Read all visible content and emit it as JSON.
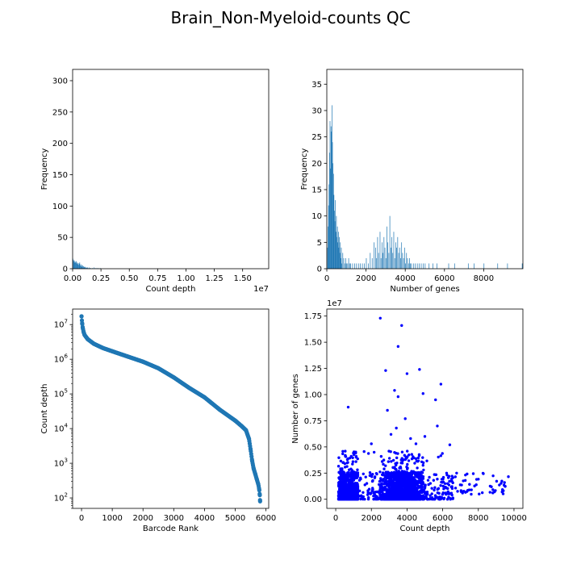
{
  "figure": {
    "title": "Brain_Non-Myeloid-counts QC",
    "colors": {
      "hist": "#1f77b4",
      "rank": "#1f77b4",
      "scatter": "#0000ff",
      "axis": "#000000"
    }
  },
  "chart_data": [
    {
      "id": "count-depth-hist",
      "type": "bar",
      "xlabel": "Count depth",
      "ylabel": "Frequency",
      "xlim": [
        0,
        17300000
      ],
      "ylim": [
        0,
        318
      ],
      "xticks": [
        0,
        2500000,
        5000000,
        7500000,
        10000000,
        12500000,
        15000000
      ],
      "xtick_labels": [
        "0.00",
        "0.25",
        "0.50",
        "0.75",
        "1.00",
        "1.25",
        "1.50"
      ],
      "yticks": [
        0,
        50,
        100,
        150,
        200,
        250,
        300
      ],
      "x_offset_label": "1e7",
      "bin_width": 43000,
      "bins": [
        [
          0,
          16
        ],
        [
          43000,
          14
        ],
        [
          86000,
          12
        ],
        [
          129000,
          13
        ],
        [
          172000,
          10
        ],
        [
          215000,
          11
        ],
        [
          258000,
          9
        ],
        [
          301000,
          12
        ],
        [
          344000,
          8
        ],
        [
          387000,
          10
        ],
        [
          430000,
          7
        ],
        [
          473000,
          9
        ],
        [
          516000,
          6
        ],
        [
          559000,
          8
        ],
        [
          602000,
          10
        ],
        [
          645000,
          5
        ],
        [
          688000,
          7
        ],
        [
          731000,
          4
        ],
        [
          774000,
          6
        ],
        [
          817000,
          3
        ],
        [
          860000,
          5
        ],
        [
          903000,
          2
        ],
        [
          946000,
          4
        ],
        [
          989000,
          3
        ],
        [
          1032000,
          2
        ],
        [
          1075000,
          3
        ],
        [
          1118000,
          2
        ],
        [
          1161000,
          1
        ],
        [
          1204000,
          2
        ],
        [
          1247000,
          1
        ],
        [
          1290000,
          2
        ],
        [
          1333000,
          1
        ],
        [
          1419000,
          2
        ],
        [
          1505000,
          1
        ],
        [
          1591000,
          1
        ],
        [
          1720000,
          1
        ],
        [
          1849000,
          2
        ],
        [
          1978000,
          1
        ],
        [
          2107000,
          1
        ],
        [
          2236000,
          1
        ],
        [
          2408000,
          1
        ]
      ]
    },
    {
      "id": "genes-hist",
      "type": "bar",
      "xlabel": "Number of genes",
      "ylabel": "Frequency",
      "xlim": [
        0,
        10000
      ],
      "ylim": [
        0,
        37.8
      ],
      "xticks": [
        0,
        2000,
        4000,
        6000,
        8000
      ],
      "yticks": [
        0,
        5,
        10,
        15,
        20,
        25,
        30,
        35
      ],
      "bin_width": 25,
      "bins": [
        [
          25,
          4
        ],
        [
          50,
          8
        ],
        [
          75,
          12
        ],
        [
          100,
          16
        ],
        [
          125,
          22
        ],
        [
          150,
          28
        ],
        [
          175,
          19
        ],
        [
          200,
          27
        ],
        [
          225,
          26
        ],
        [
          250,
          31
        ],
        [
          275,
          24
        ],
        [
          300,
          20
        ],
        [
          325,
          18
        ],
        [
          350,
          14
        ],
        [
          375,
          11
        ],
        [
          400,
          9
        ],
        [
          425,
          13
        ],
        [
          450,
          7
        ],
        [
          475,
          10
        ],
        [
          500,
          6
        ],
        [
          525,
          8
        ],
        [
          550,
          5
        ],
        [
          575,
          7
        ],
        [
          600,
          4
        ],
        [
          625,
          6
        ],
        [
          650,
          3
        ],
        [
          675,
          5
        ],
        [
          700,
          2
        ],
        [
          725,
          4
        ],
        [
          750,
          1
        ],
        [
          800,
          3
        ],
        [
          850,
          2
        ],
        [
          900,
          1
        ],
        [
          950,
          2
        ],
        [
          1000,
          1
        ],
        [
          1050,
          1
        ],
        [
          1100,
          2
        ],
        [
          1150,
          1
        ],
        [
          1200,
          1
        ],
        [
          1300,
          1
        ],
        [
          1400,
          1
        ],
        [
          1500,
          1
        ],
        [
          1600,
          1
        ],
        [
          1700,
          1
        ],
        [
          1800,
          1
        ],
        [
          1900,
          1
        ],
        [
          2000,
          2
        ],
        [
          2100,
          1
        ],
        [
          2200,
          3
        ],
        [
          2300,
          2
        ],
        [
          2400,
          5
        ],
        [
          2475,
          4
        ],
        [
          2525,
          2
        ],
        [
          2575,
          6
        ],
        [
          2625,
          3
        ],
        [
          2700,
          7
        ],
        [
          2750,
          2
        ],
        [
          2800,
          5
        ],
        [
          2850,
          3
        ],
        [
          2900,
          6
        ],
        [
          2950,
          4
        ],
        [
          3000,
          2
        ],
        [
          3050,
          8
        ],
        [
          3100,
          5
        ],
        [
          3150,
          3
        ],
        [
          3200,
          10
        ],
        [
          3250,
          4
        ],
        [
          3300,
          6
        ],
        [
          3350,
          3
        ],
        [
          3400,
          7
        ],
        [
          3450,
          2
        ],
        [
          3500,
          5
        ],
        [
          3550,
          4
        ],
        [
          3600,
          6
        ],
        [
          3650,
          3
        ],
        [
          3700,
          4
        ],
        [
          3750,
          2
        ],
        [
          3800,
          5
        ],
        [
          3850,
          3
        ],
        [
          3900,
          2
        ],
        [
          3950,
          4
        ],
        [
          4000,
          1
        ],
        [
          4050,
          3
        ],
        [
          4100,
          2
        ],
        [
          4150,
          1
        ],
        [
          4200,
          2
        ],
        [
          4250,
          1
        ],
        [
          4300,
          1
        ],
        [
          4400,
          1
        ],
        [
          4500,
          1
        ],
        [
          4600,
          1
        ],
        [
          4700,
          1
        ],
        [
          4800,
          1
        ],
        [
          4900,
          1
        ],
        [
          5000,
          1
        ],
        [
          5200,
          1
        ],
        [
          5400,
          1
        ],
        [
          5600,
          1
        ],
        [
          6200,
          1
        ],
        [
          6500,
          1
        ],
        [
          7200,
          1
        ],
        [
          7500,
          1
        ],
        [
          8000,
          1
        ],
        [
          8700,
          1
        ],
        [
          9200,
          1
        ],
        [
          9950,
          1
        ]
      ]
    },
    {
      "id": "barcode-rank",
      "type": "scatter",
      "xlabel": "Barcode Rank",
      "ylabel": "Count depth",
      "xlim": [
        -290,
        6090
      ],
      "ylog": true,
      "ylim": [
        50,
        28000000
      ],
      "xticks": [
        0,
        1000,
        2000,
        3000,
        4000,
        5000,
        6000
      ],
      "yticks": [
        100,
        1000,
        10000,
        100000,
        1000000,
        10000000
      ],
      "ytick_labels": [
        [
          "10",
          "2"
        ],
        [
          "10",
          "3"
        ],
        [
          "10",
          "4"
        ],
        [
          "10",
          "5"
        ],
        [
          "10",
          "6"
        ],
        [
          "10",
          "7"
        ]
      ],
      "curve": [
        [
          0,
          17300000
        ],
        [
          20,
          11000000
        ],
        [
          40,
          8000000
        ],
        [
          70,
          6000000
        ],
        [
          100,
          5000000
        ],
        [
          200,
          3800000
        ],
        [
          400,
          2800000
        ],
        [
          700,
          2100000
        ],
        [
          1000,
          1700000
        ],
        [
          1500,
          1200000
        ],
        [
          2000,
          850000
        ],
        [
          2500,
          550000
        ],
        [
          3000,
          300000
        ],
        [
          3500,
          150000
        ],
        [
          4000,
          80000
        ],
        [
          4500,
          35000
        ],
        [
          5000,
          17000
        ],
        [
          5200,
          12000
        ],
        [
          5350,
          9000
        ],
        [
          5450,
          5000
        ],
        [
          5500,
          2500
        ],
        [
          5550,
          1200
        ],
        [
          5600,
          700
        ],
        [
          5650,
          500
        ],
        [
          5700,
          350
        ],
        [
          5750,
          250
        ],
        [
          5780,
          180
        ],
        [
          5800,
          120
        ],
        [
          5810,
          80
        ]
      ]
    },
    {
      "id": "depth-vs-genes",
      "type": "scatter",
      "xlabel": "Count depth",
      "ylabel": "Number of genes",
      "xlim": [
        -500,
        10500
      ],
      "ylim": [
        -870000,
        18170000
      ],
      "xticks": [
        0,
        2000,
        4000,
        6000,
        8000,
        10000
      ],
      "yticks": [
        0,
        2500000,
        5000000,
        7500000,
        10000000,
        12500000,
        15000000,
        17500000
      ],
      "ytick_labels": [
        "0.00",
        "0.25",
        "0.50",
        "0.75",
        "1.00",
        "1.25",
        "1.50",
        "1.75"
      ],
      "y_offset_label": "1e7",
      "outliers": [
        [
          2500,
          17300000
        ],
        [
          3700,
          16600000
        ],
        [
          3500,
          14600000
        ],
        [
          2800,
          12300000
        ],
        [
          4700,
          12400000
        ],
        [
          4000,
          12000000
        ],
        [
          5900,
          11000000
        ],
        [
          3300,
          10400000
        ],
        [
          4900,
          10100000
        ],
        [
          3500,
          9800000
        ],
        [
          5600,
          9500000
        ],
        [
          700,
          8800000
        ],
        [
          2900,
          8500000
        ],
        [
          3900,
          7700000
        ],
        [
          5700,
          7000000
        ],
        [
          3400,
          6800000
        ],
        [
          2000,
          5300000
        ],
        [
          4500,
          5300000
        ],
        [
          6400,
          5200000
        ],
        [
          5000,
          6000000
        ],
        [
          3100,
          6200000
        ],
        [
          4200,
          5800000
        ]
      ]
    }
  ]
}
